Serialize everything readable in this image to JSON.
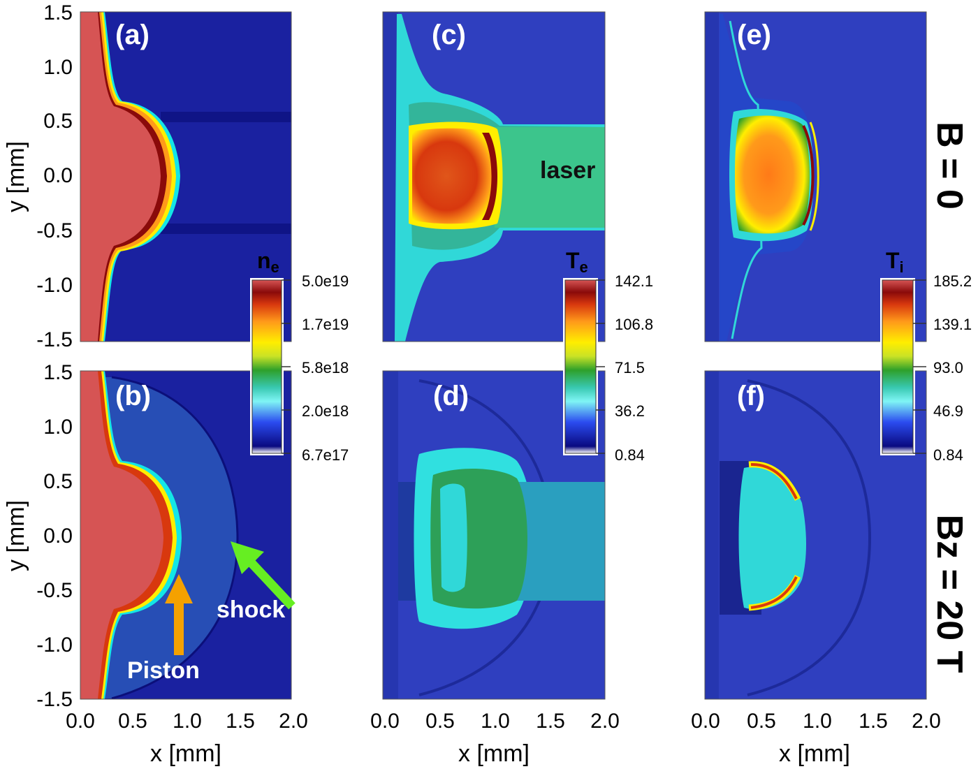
{
  "figure": {
    "axis_labels": {
      "y": "y [mm]",
      "x": "x [mm]"
    },
    "y_ticks": [
      "1.5",
      "1.0",
      "0.5",
      "0.0",
      "-0.5",
      "-1.0",
      "-1.5"
    ],
    "x_ticks": [
      "0.0",
      "0.5",
      "1.0",
      "1.5",
      "2.0"
    ],
    "row_labels": [
      "B = 0",
      "Bz = 20 T"
    ],
    "panels": [
      {
        "id": "a",
        "label": "(a)",
        "quantity": "n_e"
      },
      {
        "id": "b",
        "label": "(b)",
        "quantity": "n_e"
      },
      {
        "id": "c",
        "label": "(c)",
        "quantity": "T_e"
      },
      {
        "id": "d",
        "label": "(d)",
        "quantity": "T_e"
      },
      {
        "id": "e",
        "label": "(e)",
        "quantity": "T_i"
      },
      {
        "id": "f",
        "label": "(f)",
        "quantity": "T_i"
      }
    ],
    "annotations": {
      "laser": "laser",
      "shock": "shock",
      "piston": "Piston"
    },
    "colorbars": [
      {
        "title_base": "n",
        "title_sub": "e",
        "ticks": [
          "5.0e19",
          "1.7e19",
          "5.8e18",
          "2.0e18",
          "6.7e17"
        ]
      },
      {
        "title_base": "T",
        "title_sub": "e",
        "ticks": [
          "142.1",
          "106.8",
          "71.5",
          "36.2",
          "0.84"
        ]
      },
      {
        "title_base": "T",
        "title_sub": "i",
        "ticks": [
          "185.2",
          "139.1",
          "93.0",
          "46.9",
          "0.84"
        ]
      }
    ],
    "colors": {
      "background": "#2f3fbf",
      "dark_blue": "#0b0f7a",
      "target_red": "#d65454",
      "arrow_piston": "#f5a100",
      "arrow_shock": "#66ee22"
    }
  }
}
